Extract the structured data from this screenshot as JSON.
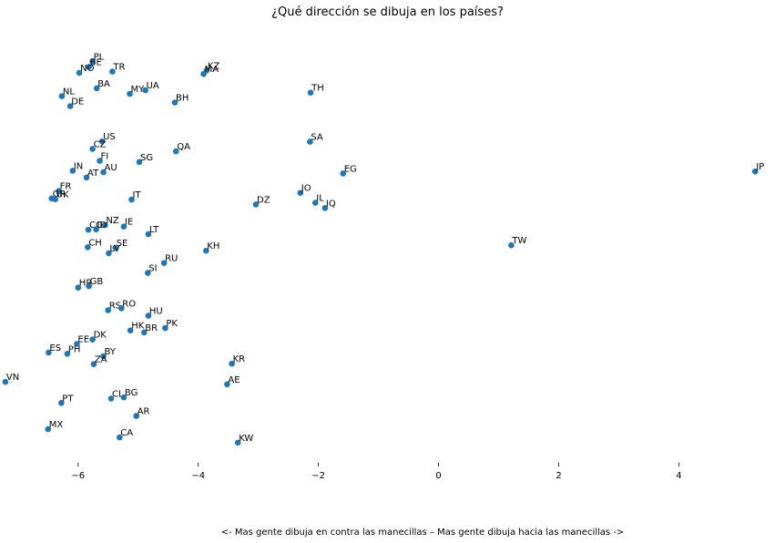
{
  "chart_data": {
    "type": "scatter",
    "title": "¿Qué dirección se dibuja en los países?",
    "xlabel": "<- Mas gente dibuja en contra las manecillas – Mas gente dibuja hacia las manecillas ->",
    "ylabel": "",
    "xlim": [
      -7.3,
      5.6
    ],
    "ylim": [
      0,
      1
    ],
    "xticks": [
      -6,
      -4,
      -2,
      0,
      2,
      4
    ],
    "xtick_labels": [
      "−6",
      "−4",
      "−2",
      "0",
      "2",
      "4"
    ],
    "y_axis_shown": false,
    "grid": false,
    "legend": "none",
    "marker_color": "#1f77b4",
    "points": [
      {
        "label": "PL",
        "x": -5.76,
        "y": 0.951
      },
      {
        "label": "BE",
        "x": -5.82,
        "y": 0.937
      },
      {
        "label": "TR",
        "x": -5.43,
        "y": 0.925
      },
      {
        "label": "NO",
        "x": -5.98,
        "y": 0.922
      },
      {
        "label": "KZ",
        "x": -3.86,
        "y": 0.928
      },
      {
        "label": "MA",
        "x": -3.91,
        "y": 0.919
      },
      {
        "label": "BA",
        "x": -5.69,
        "y": 0.883
      },
      {
        "label": "MY",
        "x": -5.14,
        "y": 0.869
      },
      {
        "label": "UA",
        "x": -4.88,
        "y": 0.878
      },
      {
        "label": "NL",
        "x": -6.27,
        "y": 0.863
      },
      {
        "label": "BH",
        "x": -4.39,
        "y": 0.847
      },
      {
        "label": "DE",
        "x": -6.13,
        "y": 0.838
      },
      {
        "label": "TH",
        "x": -2.13,
        "y": 0.872
      },
      {
        "label": "SA",
        "x": -2.14,
        "y": 0.748
      },
      {
        "label": "US",
        "x": -5.6,
        "y": 0.749
      },
      {
        "label": "CZ",
        "x": -5.76,
        "y": 0.73
      },
      {
        "label": "QA",
        "x": -4.37,
        "y": 0.724
      },
      {
        "label": "FI",
        "x": -5.64,
        "y": 0.7
      },
      {
        "label": "SG",
        "x": -4.98,
        "y": 0.697
      },
      {
        "label": "IN",
        "x": -6.09,
        "y": 0.675
      },
      {
        "label": "AU",
        "x": -5.58,
        "y": 0.671
      },
      {
        "label": "AT",
        "x": -5.86,
        "y": 0.658
      },
      {
        "label": "EG",
        "x": -1.59,
        "y": 0.668
      },
      {
        "label": "JP",
        "x": 5.27,
        "y": 0.673
      },
      {
        "label": "JO",
        "x": -2.3,
        "y": 0.619
      },
      {
        "label": "FR",
        "x": -6.32,
        "y": 0.624
      },
      {
        "label": "GR",
        "x": -6.44,
        "y": 0.605
      },
      {
        "label": "UK",
        "x": -6.38,
        "y": 0.603
      },
      {
        "label": "IT",
        "x": -5.11,
        "y": 0.602
      },
      {
        "label": "DZ",
        "x": -3.04,
        "y": 0.59
      },
      {
        "label": "IL",
        "x": -2.05,
        "y": 0.594
      },
      {
        "label": "IQ",
        "x": -1.89,
        "y": 0.581
      },
      {
        "label": "NZ",
        "x": -5.55,
        "y": 0.538
      },
      {
        "label": "IE",
        "x": -5.24,
        "y": 0.534
      },
      {
        "label": "CO",
        "x": -5.83,
        "y": 0.526
      },
      {
        "label": "ID",
        "x": -5.7,
        "y": 0.527
      },
      {
        "label": "LT",
        "x": -4.83,
        "y": 0.515
      },
      {
        "label": "TW",
        "x": 1.21,
        "y": 0.487
      },
      {
        "label": "CH",
        "x": -5.84,
        "y": 0.482
      },
      {
        "label": "SE",
        "x": -5.38,
        "y": 0.481
      },
      {
        "label": "LV",
        "x": -5.49,
        "y": 0.467
      },
      {
        "label": "KH",
        "x": -3.87,
        "y": 0.473
      },
      {
        "label": "RU",
        "x": -4.57,
        "y": 0.442
      },
      {
        "label": "SI",
        "x": -4.84,
        "y": 0.417
      },
      {
        "label": "HR",
        "x": -6.0,
        "y": 0.38
      },
      {
        "label": "GB",
        "x": -5.82,
        "y": 0.384
      },
      {
        "label": "RS",
        "x": -5.5,
        "y": 0.323
      },
      {
        "label": "RO",
        "x": -5.28,
        "y": 0.328
      },
      {
        "label": "HU",
        "x": -4.83,
        "y": 0.309
      },
      {
        "label": "PK",
        "x": -4.55,
        "y": 0.278
      },
      {
        "label": "HK",
        "x": -5.13,
        "y": 0.272
      },
      {
        "label": "BR",
        "x": -4.9,
        "y": 0.267
      },
      {
        "label": "DK",
        "x": -5.76,
        "y": 0.249
      },
      {
        "label": "EE",
        "x": -6.02,
        "y": 0.238
      },
      {
        "label": "ES",
        "x": -6.49,
        "y": 0.216
      },
      {
        "label": "PH",
        "x": -6.18,
        "y": 0.213
      },
      {
        "label": "BY",
        "x": -5.58,
        "y": 0.207
      },
      {
        "label": "ZA",
        "x": -5.74,
        "y": 0.187
      },
      {
        "label": "KR",
        "x": -3.44,
        "y": 0.188
      },
      {
        "label": "VN",
        "x": -7.21,
        "y": 0.142
      },
      {
        "label": "AE",
        "x": -3.52,
        "y": 0.136
      },
      {
        "label": "CL",
        "x": -5.45,
        "y": 0.1
      },
      {
        "label": "BG",
        "x": -5.24,
        "y": 0.103
      },
      {
        "label": "PT",
        "x": -6.28,
        "y": 0.089
      },
      {
        "label": "AR",
        "x": -5.03,
        "y": 0.056
      },
      {
        "label": "MX",
        "x": -6.5,
        "y": 0.023
      },
      {
        "label": "CA",
        "x": -5.31,
        "y": 0.002
      },
      {
        "label": "KW",
        "x": -3.34,
        "y": -0.011
      }
    ]
  }
}
